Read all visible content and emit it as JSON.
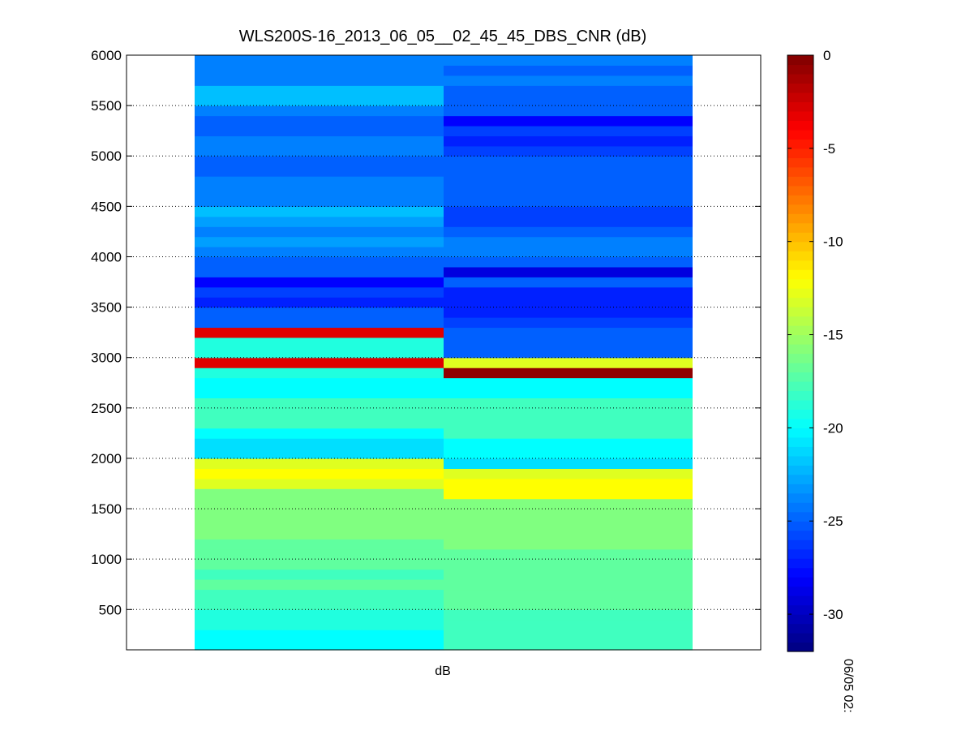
{
  "chart_data": {
    "type": "heatmap",
    "title": "WLS200S-16_2013_06_05__02_45_45_DBS_CNR (dB)",
    "xlabel": "dB",
    "ylabel": "",
    "ylim": [
      100,
      6000
    ],
    "yticks": [
      500,
      1000,
      1500,
      2000,
      2500,
      3000,
      3500,
      4000,
      4500,
      5000,
      5500,
      6000
    ],
    "grid": true,
    "colormap": "jet",
    "colorbar": {
      "range": [
        -32,
        0
      ],
      "ticks": [
        0,
        -5,
        -10,
        -15,
        -20,
        -25,
        -30
      ],
      "side_label": "06/05 02:"
    },
    "bin_height": 100,
    "columns": [
      {
        "values": [
          -19,
          -20,
          -20,
          -19,
          -19,
          -18,
          -18,
          -17,
          -18,
          -17,
          -17,
          -17,
          -16,
          -16,
          -16,
          -16,
          -16,
          -13,
          -12,
          -13,
          -21,
          -21,
          -20,
          -18,
          -18,
          -18,
          -20,
          -20,
          -19,
          -3,
          -19,
          -19,
          -3,
          -25,
          -25,
          -27,
          -26,
          -28,
          -25,
          -25,
          -24,
          -23,
          -24,
          -23,
          -22,
          -24,
          -24,
          -24,
          -25,
          -25,
          -24,
          -24,
          -25,
          -25,
          -24,
          -22,
          -22,
          -24,
          -24,
          -24
        ]
      },
      {
        "values": [
          -19,
          -18,
          -18,
          -18,
          -18,
          -17,
          -17,
          -17,
          -17,
          -17,
          -17,
          -16,
          -16,
          -16,
          -16,
          -16,
          -12,
          -12,
          -13,
          -21,
          -20,
          -20,
          -18,
          -18,
          -18,
          -18,
          -20,
          -20,
          -0.5,
          -13,
          -25,
          -25,
          -25,
          -26,
          -27,
          -27,
          -27,
          -25,
          -29,
          -25,
          -24,
          -24,
          -25,
          -26,
          -26,
          -25,
          -25,
          -25,
          -25,
          -25,
          -26,
          -27,
          -26,
          -28,
          -25,
          -25,
          -25,
          -24,
          -25,
          -24
        ]
      }
    ]
  }
}
